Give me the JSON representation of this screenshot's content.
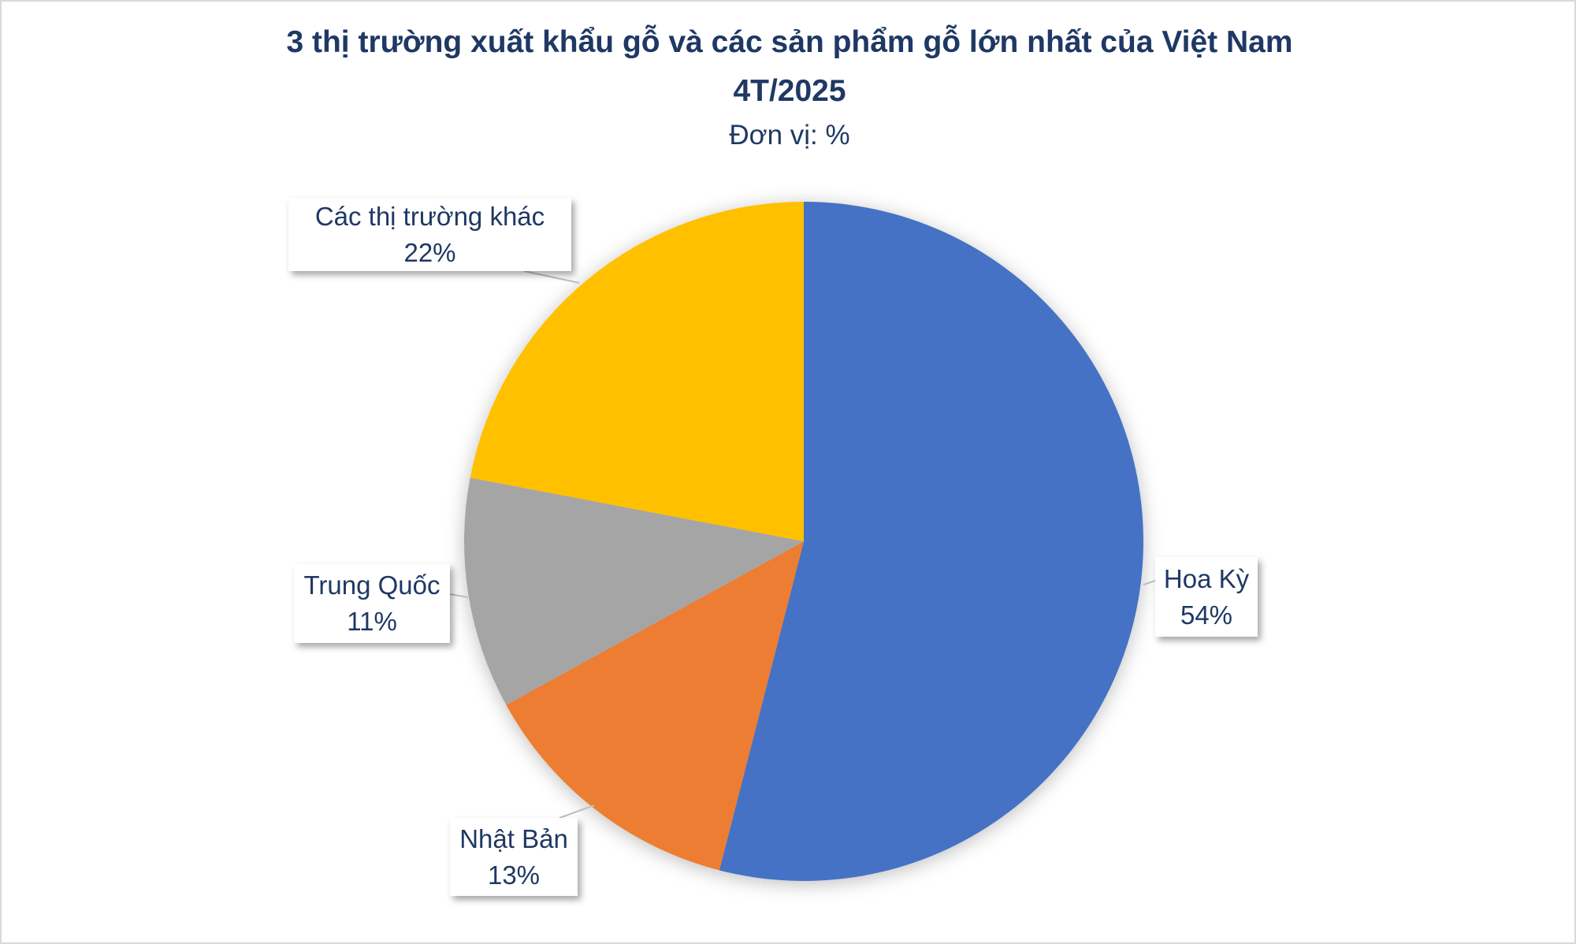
{
  "chart_data": {
    "type": "pie",
    "title": "3 thị trường xuất khẩu gỗ và các sản phẩm gỗ lớn nhất của Việt Nam",
    "title_line2": "4T/2025",
    "subtitle": "Đơn vị: %",
    "start_angle": "top, clockwise",
    "legend": "none (data labels with callouts)",
    "slices": [
      {
        "label": "Hoa Kỳ",
        "value": 54,
        "display": "54%",
        "color": "#4472C4"
      },
      {
        "label": "Nhật Bản",
        "value": 13,
        "display": "13%",
        "color": "#ED7D31"
      },
      {
        "label": "Trung Quốc",
        "value": 11,
        "display": "11%",
        "color": "#A5A5A5"
      },
      {
        "label": "Các thị trường khác",
        "value": 22,
        "display": "22%",
        "color": "#FFC000"
      }
    ]
  }
}
